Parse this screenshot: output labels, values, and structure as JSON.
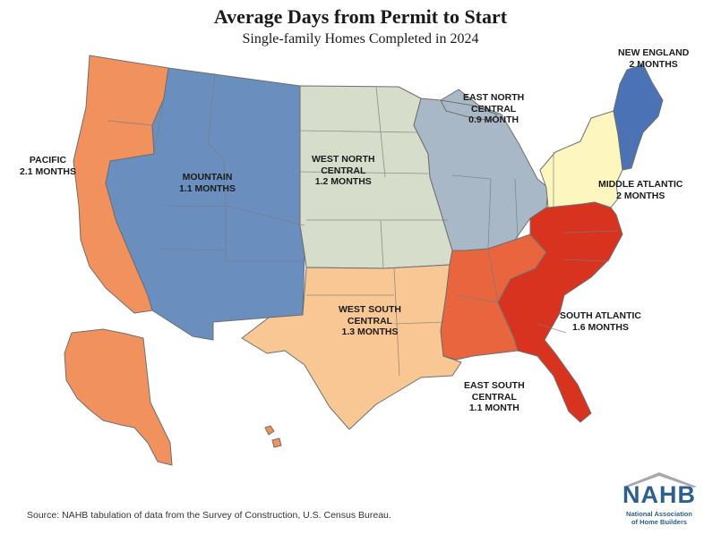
{
  "title": "Average Days from Permit to Start",
  "subtitle": "Single-family Homes Completed in 2024",
  "colors": {
    "pacific": "#f0915e",
    "mountain": "#6a8fbf",
    "west_north_central": "#d6ddcb",
    "east_north_central": "#a9b8c7",
    "new_england": "#4a72b5",
    "middle_atlantic": "#fdf6bf",
    "south_atlantic": "#d8331f",
    "east_south_central": "#e8653e",
    "west_south_central": "#f9c793"
  },
  "regions": [
    {
      "id": "new_england",
      "name": "NEW ENGLAND",
      "value": "2 MONTHS"
    },
    {
      "id": "east_north_central",
      "name": "EAST NORTH CENTRAL",
      "value": "0.9 MONTH"
    },
    {
      "id": "pacific",
      "name": "PACIFIC",
      "value": "2.1 MONTHS"
    },
    {
      "id": "mountain",
      "name": "MOUNTAIN",
      "value": "1.1 MONTHS"
    },
    {
      "id": "west_north_central",
      "name": "WEST NORTH CENTRAL",
      "value": "1.2 MONTHS"
    },
    {
      "id": "middle_atlantic",
      "name": "MIDDLE ATLANTIC",
      "value": "2 MONTHS"
    },
    {
      "id": "west_south_central",
      "name": "WEST SOUTH CENTRAL",
      "value": "1.3 MONTHS"
    },
    {
      "id": "south_atlantic",
      "name": "SOUTH ATLANTIC",
      "value": "1.6 MONTHS"
    },
    {
      "id": "east_south_central",
      "name": "EAST SOUTH CENTRAL",
      "value": "1.1 MONTH"
    }
  ],
  "labels": {
    "new_england": [
      "NEW ENGLAND",
      "2 MONTHS"
    ],
    "east_north_central": [
      "EAST NORTH",
      "CENTRAL",
      "0.9 MONTH"
    ],
    "pacific": [
      "PACIFIC",
      "2.1 MONTHS"
    ],
    "mountain": [
      "MOUNTAIN",
      "1.1 MONTHS"
    ],
    "west_north_central": [
      "WEST NORTH",
      "CENTRAL",
      "1.2 MONTHS"
    ],
    "middle_atlantic": [
      "MIDDLE ATLANTIC",
      "2 MONTHS"
    ],
    "west_south_central": [
      "WEST SOUTH",
      "CENTRAL",
      "1.3 MONTHS"
    ],
    "south_atlantic": [
      "SOUTH ATLANTIC",
      "1.6 MONTHS"
    ],
    "east_south_central": [
      "EAST SOUTH",
      "CENTRAL",
      "1.1 MONTH"
    ]
  },
  "source": "Source: NAHB tabulation of data from the Survey of Construction, U.S. Census Bureau.",
  "logo": {
    "word": "NAHB",
    "line1": "National Association",
    "line2": "of Home Builders",
    "color": "#2d5f8f",
    "roof_color": "#a7a9ac"
  }
}
